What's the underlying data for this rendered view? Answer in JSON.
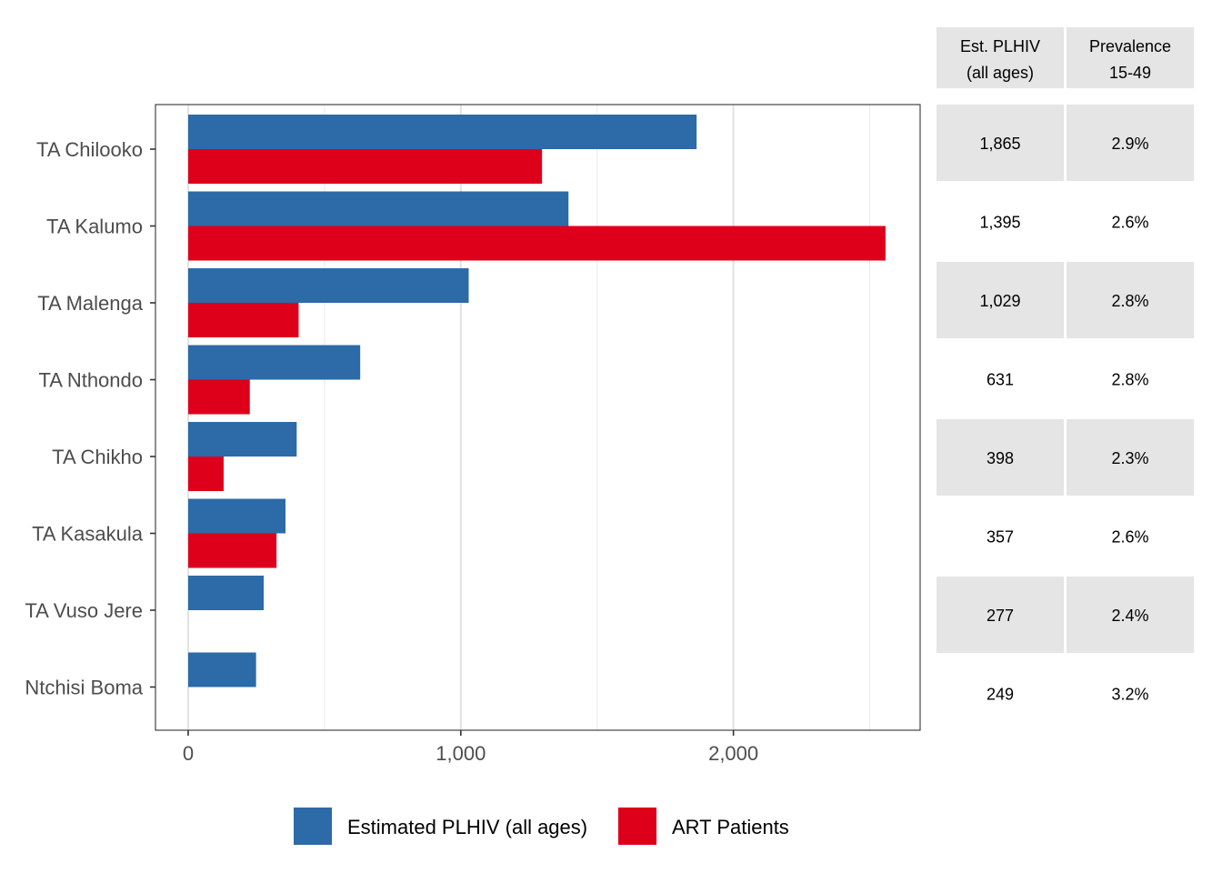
{
  "chart_data": {
    "type": "bar",
    "orientation": "horizontal",
    "categories": [
      "TA Chilooko",
      "TA Kalumo",
      "TA Malenga",
      "TA Nthondo",
      "TA Chikho",
      "TA Kasakula",
      "TA Vuso Jere",
      "Ntchisi Boma"
    ],
    "series": [
      {
        "name": "Estimated PLHIV (all ages)",
        "color": "#2c6aa8",
        "values": [
          1865,
          1395,
          1029,
          631,
          398,
          357,
          277,
          249
        ]
      },
      {
        "name": "ART Patients",
        "color": "#de001b",
        "values": [
          1298,
          2558,
          405,
          226,
          130,
          324,
          null,
          null
        ]
      }
    ],
    "xlim": [
      -120,
      2685
    ],
    "x_ticks": [
      0,
      1000,
      2000
    ],
    "x_tick_labels": [
      "0",
      "1,000",
      "2,000"
    ],
    "x_minor_gridlines": [
      500,
      1500,
      2500
    ],
    "grid": true,
    "legend_position": "bottom",
    "title": "",
    "xlabel": "",
    "ylabel": ""
  },
  "side_table": {
    "headers": [
      {
        "line1": "Est. PLHIV",
        "line2": "(all ages)"
      },
      {
        "line1": "Prevalence",
        "line2": "15-49"
      }
    ],
    "rows": [
      {
        "plhiv": "1,865",
        "prevalence": "2.9%"
      },
      {
        "plhiv": "1,395",
        "prevalence": "2.6%"
      },
      {
        "plhiv": "1,029",
        "prevalence": "2.8%"
      },
      {
        "plhiv": "631",
        "prevalence": "2.8%"
      },
      {
        "plhiv": "398",
        "prevalence": "2.3%"
      },
      {
        "plhiv": "357",
        "prevalence": "2.6%"
      },
      {
        "plhiv": "277",
        "prevalence": "2.4%"
      },
      {
        "plhiv": "249",
        "prevalence": "3.2%"
      }
    ],
    "shaded_color": "#e5e5e5"
  }
}
